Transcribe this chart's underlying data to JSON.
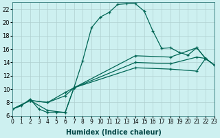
{
  "xlabel": "Humidex (Indice chaleur)",
  "bg_color": "#cdf0f0",
  "grid_color": "#b0d0d0",
  "line_color": "#006655",
  "xlim": [
    0,
    23
  ],
  "ylim": [
    6,
    23
  ],
  "ytick_min": 6,
  "ytick_max": 22,
  "ytick_step": 2,
  "line1_x": [
    0,
    1,
    2,
    3,
    4,
    5,
    6,
    7,
    8,
    9,
    10,
    11,
    12,
    13,
    14,
    15,
    16,
    17,
    18,
    19,
    20,
    21,
    22,
    23
  ],
  "line1_y": [
    7.0,
    7.5,
    8.5,
    7.0,
    6.5,
    6.5,
    6.5,
    10.2,
    14.3,
    19.2,
    20.8,
    21.5,
    22.7,
    22.8,
    22.8,
    21.7,
    18.7,
    16.1,
    16.2,
    15.5,
    15.1,
    16.2,
    14.6,
    13.6
  ],
  "line2_x": [
    0,
    2,
    4,
    6,
    7,
    14,
    18,
    21,
    22,
    23
  ],
  "line2_y": [
    7.0,
    8.3,
    6.8,
    6.5,
    10.2,
    15.0,
    14.8,
    16.2,
    14.6,
    13.6
  ],
  "line3_x": [
    0,
    2,
    4,
    6,
    7,
    14,
    18,
    21,
    22,
    23
  ],
  "line3_y": [
    7.0,
    8.3,
    8.0,
    9.5,
    10.2,
    14.0,
    13.8,
    14.8,
    14.6,
    13.6
  ],
  "line4_x": [
    0,
    2,
    4,
    6,
    7,
    14,
    18,
    21,
    22,
    23
  ],
  "line4_y": [
    7.0,
    8.3,
    8.0,
    9.0,
    10.2,
    13.2,
    13.0,
    12.7,
    14.6,
    13.6
  ]
}
